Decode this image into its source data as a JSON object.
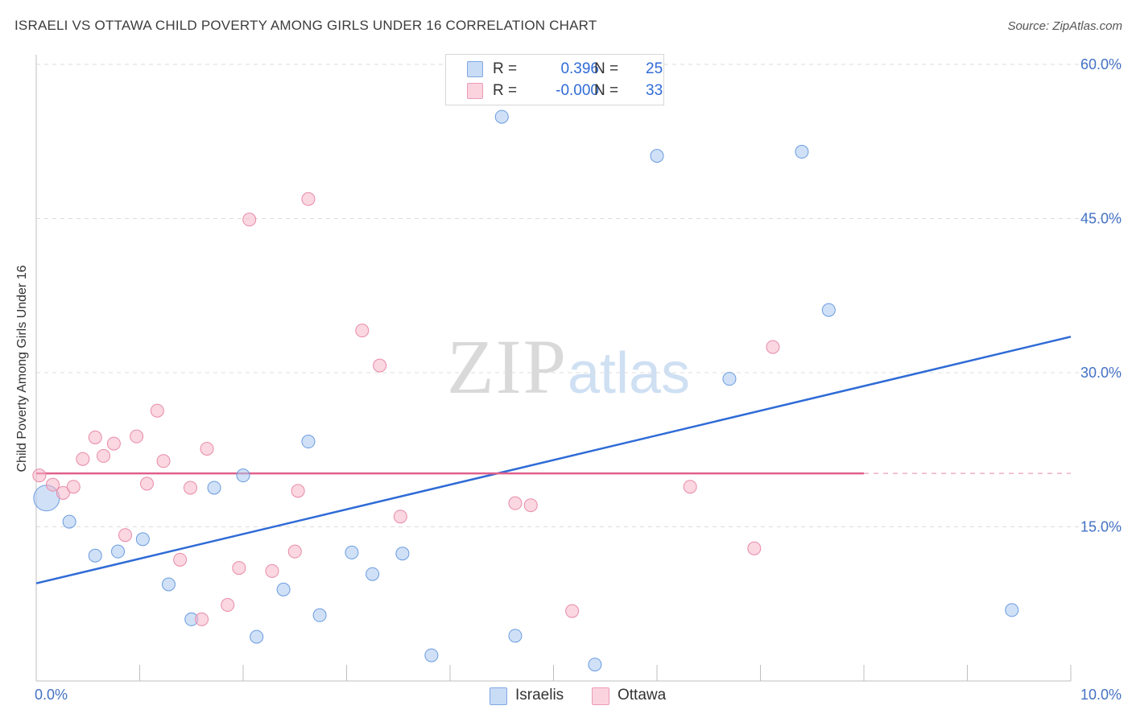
{
  "title": "ISRAELI VS OTTAWA CHILD POVERTY AMONG GIRLS UNDER 16 CORRELATION CHART",
  "source": "Source: ZipAtlas.com",
  "watermark": {
    "zip": "ZIP",
    "atlas": "atlas"
  },
  "stats": [
    {
      "r_label": "R =",
      "r_value": "0.396",
      "n_label": "N =",
      "n_value": "25",
      "color": "#a9c8f0"
    },
    {
      "r_label": "R =",
      "r_value": "-0.000",
      "n_label": "N =",
      "n_value": "33",
      "color": "#f5b6c8"
    }
  ],
  "legend": [
    {
      "label": "Israelis",
      "color": "#a9c8f0"
    },
    {
      "label": "Ottawa",
      "color": "#f5b6c8"
    }
  ],
  "chart_data": {
    "type": "scatter",
    "title": "ISRAELI VS OTTAWA CHILD POVERTY AMONG GIRLS UNDER 16 CORRELATION CHART",
    "xlabel": "",
    "ylabel": "Child Poverty Among Girls Under 16",
    "xlim": [
      0,
      10
    ],
    "ylim": [
      0,
      60
    ],
    "x_tick_labels": [
      {
        "value": 0,
        "label": "0.0%"
      },
      {
        "value": 10,
        "label": "10.0%"
      }
    ],
    "y_tick_labels": [
      {
        "value": 15,
        "label": "15.0%"
      },
      {
        "value": 30,
        "label": "30.0%"
      },
      {
        "value": 45,
        "label": "45.0%"
      },
      {
        "value": 60,
        "label": "60.0%"
      }
    ],
    "grid": "horizontal dashed",
    "legend_position": "bottom-center",
    "series": [
      {
        "name": "Israelis",
        "color": "#a9c8f0",
        "stroke": "#6a9be0",
        "trend": {
          "x": [
            0,
            10
          ],
          "y": [
            9.5,
            33.5
          ],
          "color": "#2f6bd6",
          "style": "solid"
        },
        "points": [
          {
            "x": 0.1,
            "y": 17.8,
            "size": "large"
          },
          {
            "x": 0.32,
            "y": 15.5
          },
          {
            "x": 0.57,
            "y": 12.2
          },
          {
            "x": 0.79,
            "y": 12.6
          },
          {
            "x": 1.03,
            "y": 13.8
          },
          {
            "x": 1.28,
            "y": 9.4
          },
          {
            "x": 1.5,
            "y": 6.0
          },
          {
            "x": 1.72,
            "y": 18.8
          },
          {
            "x": 2.0,
            "y": 20.0
          },
          {
            "x": 2.13,
            "y": 4.3
          },
          {
            "x": 2.39,
            "y": 8.9
          },
          {
            "x": 2.63,
            "y": 23.3
          },
          {
            "x": 2.74,
            "y": 6.4
          },
          {
            "x": 3.05,
            "y": 12.5
          },
          {
            "x": 3.25,
            "y": 10.4
          },
          {
            "x": 3.54,
            "y": 12.4
          },
          {
            "x": 3.82,
            "y": 2.5
          },
          {
            "x": 4.5,
            "y": 54.9
          },
          {
            "x": 4.63,
            "y": 4.4
          },
          {
            "x": 5.4,
            "y": 1.6
          },
          {
            "x": 6.0,
            "y": 51.1
          },
          {
            "x": 6.7,
            "y": 29.4
          },
          {
            "x": 7.4,
            "y": 51.5
          },
          {
            "x": 7.66,
            "y": 36.1
          },
          {
            "x": 9.43,
            "y": 6.9
          }
        ]
      },
      {
        "name": "Ottawa",
        "color": "#f5b6c8",
        "stroke": "#e98aa8",
        "trend": {
          "x": [
            0,
            8
          ],
          "y": [
            20.2,
            20.2
          ],
          "dash_to": 10,
          "color": "#e0608a",
          "style": "solid-then-dashed"
        },
        "points": [
          {
            "x": 0.03,
            "y": 20.0
          },
          {
            "x": 0.16,
            "y": 19.1
          },
          {
            "x": 0.26,
            "y": 18.3
          },
          {
            "x": 0.36,
            "y": 18.9
          },
          {
            "x": 0.45,
            "y": 21.6
          },
          {
            "x": 0.57,
            "y": 23.7
          },
          {
            "x": 0.65,
            "y": 21.9
          },
          {
            "x": 0.75,
            "y": 23.1
          },
          {
            "x": 0.86,
            "y": 14.2
          },
          {
            "x": 0.97,
            "y": 23.8
          },
          {
            "x": 1.07,
            "y": 19.2
          },
          {
            "x": 1.17,
            "y": 26.3
          },
          {
            "x": 1.23,
            "y": 21.4
          },
          {
            "x": 1.39,
            "y": 11.8
          },
          {
            "x": 1.49,
            "y": 18.8
          },
          {
            "x": 1.6,
            "y": 6.0
          },
          {
            "x": 1.65,
            "y": 22.6
          },
          {
            "x": 1.85,
            "y": 7.4
          },
          {
            "x": 1.96,
            "y": 11.0
          },
          {
            "x": 2.06,
            "y": 44.9
          },
          {
            "x": 2.28,
            "y": 10.7
          },
          {
            "x": 2.5,
            "y": 12.6
          },
          {
            "x": 2.53,
            "y": 18.5
          },
          {
            "x": 2.63,
            "y": 46.9
          },
          {
            "x": 3.15,
            "y": 34.1
          },
          {
            "x": 3.32,
            "y": 30.7
          },
          {
            "x": 3.52,
            "y": 16.0
          },
          {
            "x": 4.63,
            "y": 17.3
          },
          {
            "x": 4.78,
            "y": 17.1
          },
          {
            "x": 5.18,
            "y": 6.8
          },
          {
            "x": 6.32,
            "y": 18.9
          },
          {
            "x": 6.94,
            "y": 12.9
          },
          {
            "x": 7.12,
            "y": 32.5
          }
        ]
      }
    ]
  }
}
